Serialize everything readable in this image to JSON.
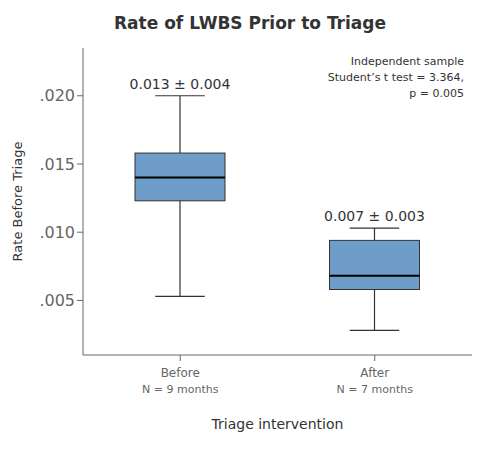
{
  "chart_data": {
    "type": "box",
    "title": "Rate of LWBS Prior to Triage",
    "xlabel": "Triage intervention",
    "ylabel": "Rate Before Triage",
    "categories": [
      "Before",
      "After"
    ],
    "category_notes": [
      "N = 9 months",
      "N = 7 months"
    ],
    "boxes": [
      {
        "median": 0.014,
        "q1": 0.0123,
        "q3": 0.0158,
        "whisker_low": 0.0053,
        "whisker_high": 0.02,
        "label": "0.013 ± 0.004"
      },
      {
        "median": 0.0068,
        "q1": 0.0058,
        "q3": 0.0094,
        "whisker_low": 0.0028,
        "whisker_high": 0.0103,
        "label": "0.007 ± 0.003"
      }
    ],
    "color": "#6e9dc9",
    "annotation": "Independent sample\nStudent’s t test = 3.364,\np = 0.005",
    "ylim": [
      0.001,
      0.0235
    ],
    "yticks": [
      {
        "value": 0.005,
        "label": ".005"
      },
      {
        "value": 0.01,
        "label": ".010"
      },
      {
        "value": 0.015,
        "label": ".015"
      },
      {
        "value": 0.02,
        "label": ".020"
      }
    ],
    "grid": false
  }
}
